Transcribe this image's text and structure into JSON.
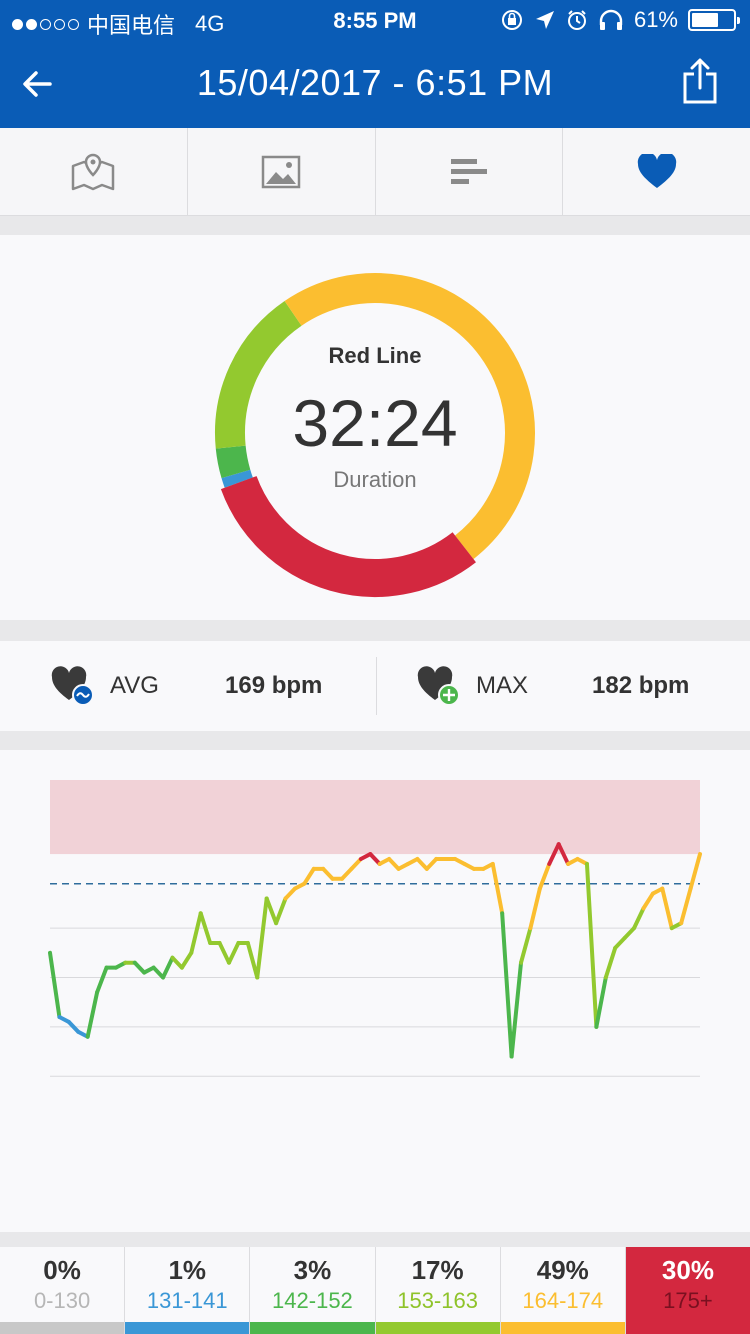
{
  "status_bar": {
    "carrier": "中国电信",
    "network": "4G",
    "time": "8:55 PM",
    "battery": "61%",
    "battery_level": 0.61
  },
  "nav": {
    "title": "15/04/2017 - 6:51 PM",
    "back_icon": "back-arrow-icon",
    "share_icon": "share-icon"
  },
  "tabs": [
    {
      "icon": "map-icon",
      "active": false
    },
    {
      "icon": "photo-icon",
      "active": false
    },
    {
      "icon": "bars-icon",
      "active": false
    },
    {
      "icon": "heart-icon",
      "active": true
    }
  ],
  "ring": {
    "label": "Red Line",
    "value": "32:24",
    "sub": "Duration"
  },
  "stats": {
    "avg_label": "AVG",
    "avg_value": "169 bpm",
    "max_label": "MAX",
    "max_value": "182 bpm"
  },
  "chart_data": {
    "type": "line",
    "y_range": [
      110,
      190
    ],
    "red_line_threshold": 175,
    "avg_line": 169,
    "grid_lines": [
      160,
      150,
      140,
      130
    ],
    "points": [
      [
        0,
        155
      ],
      [
        1,
        142
      ],
      [
        2,
        141
      ],
      [
        3,
        139
      ],
      [
        4,
        138
      ],
      [
        5,
        147
      ],
      [
        6,
        152
      ],
      [
        7,
        152
      ],
      [
        8,
        153
      ],
      [
        9,
        153
      ],
      [
        10,
        151
      ],
      [
        11,
        152
      ],
      [
        12,
        150
      ],
      [
        13,
        154
      ],
      [
        14,
        152
      ],
      [
        15,
        155
      ],
      [
        16,
        163
      ],
      [
        17,
        157
      ],
      [
        18,
        157
      ],
      [
        19,
        153
      ],
      [
        20,
        157
      ],
      [
        21,
        157
      ],
      [
        22,
        150
      ],
      [
        23,
        166
      ],
      [
        24,
        161
      ],
      [
        25,
        166
      ],
      [
        26,
        168
      ],
      [
        27,
        169
      ],
      [
        28,
        172
      ],
      [
        29,
        172
      ],
      [
        30,
        170
      ],
      [
        31,
        170
      ],
      [
        32,
        172
      ],
      [
        33,
        174
      ],
      [
        34,
        175
      ],
      [
        35,
        173
      ],
      [
        36,
        174
      ],
      [
        37,
        172
      ],
      [
        38,
        173
      ],
      [
        39,
        174
      ],
      [
        40,
        172
      ],
      [
        41,
        174
      ],
      [
        42,
        174
      ],
      [
        43,
        174
      ],
      [
        44,
        173
      ],
      [
        45,
        172
      ],
      [
        46,
        172
      ],
      [
        47,
        173
      ],
      [
        48,
        163
      ],
      [
        49,
        134
      ],
      [
        50,
        153
      ],
      [
        51,
        160
      ],
      [
        52,
        168
      ],
      [
        53,
        173
      ],
      [
        54,
        177
      ],
      [
        55,
        173
      ],
      [
        56,
        174
      ],
      [
        57,
        173
      ],
      [
        58,
        140
      ],
      [
        59,
        150
      ],
      [
        60,
        156
      ],
      [
        61,
        158
      ],
      [
        62,
        160
      ],
      [
        63,
        164
      ],
      [
        64,
        167
      ],
      [
        65,
        168
      ],
      [
        66,
        160
      ],
      [
        67,
        161
      ],
      [
        68,
        168
      ],
      [
        69,
        175
      ]
    ],
    "color_threshold": 175
  },
  "zones": [
    {
      "pct": "0%",
      "range": "0-130",
      "color": "#c8c8c8",
      "range_color": "#b6b6b6",
      "active": false
    },
    {
      "pct": "1%",
      "range": "131-141",
      "color": "#3a97d6",
      "range_color": "#3a97d6",
      "active": false
    },
    {
      "pct": "3%",
      "range": "142-152",
      "color": "#4cb64c",
      "range_color": "#4cb64c",
      "active": false
    },
    {
      "pct": "17%",
      "range": "153-163",
      "color": "#93c92f",
      "range_color": "#8fc32a",
      "active": false
    },
    {
      "pct": "49%",
      "range": "164-174",
      "color": "#fbbe30",
      "range_color": "#fbbe30",
      "active": false
    },
    {
      "pct": "30%",
      "range": "175+",
      "color": "#d3283f",
      "range_color": "#7a1020",
      "active": true
    }
  ],
  "ring_segments": [
    {
      "zone": "0-130",
      "fraction": 0.0,
      "color": "#c8c8c8"
    },
    {
      "zone": "131-141",
      "fraction": 0.01,
      "color": "#3a97d6"
    },
    {
      "zone": "142-152",
      "fraction": 0.03,
      "color": "#4cb64c"
    },
    {
      "zone": "153-163",
      "fraction": 0.17,
      "color": "#93c92f"
    },
    {
      "zone": "164-174",
      "fraction": 0.49,
      "color": "#fbbe30"
    },
    {
      "zone": "175+",
      "fraction": 0.3,
      "color": "#d3283f"
    }
  ]
}
